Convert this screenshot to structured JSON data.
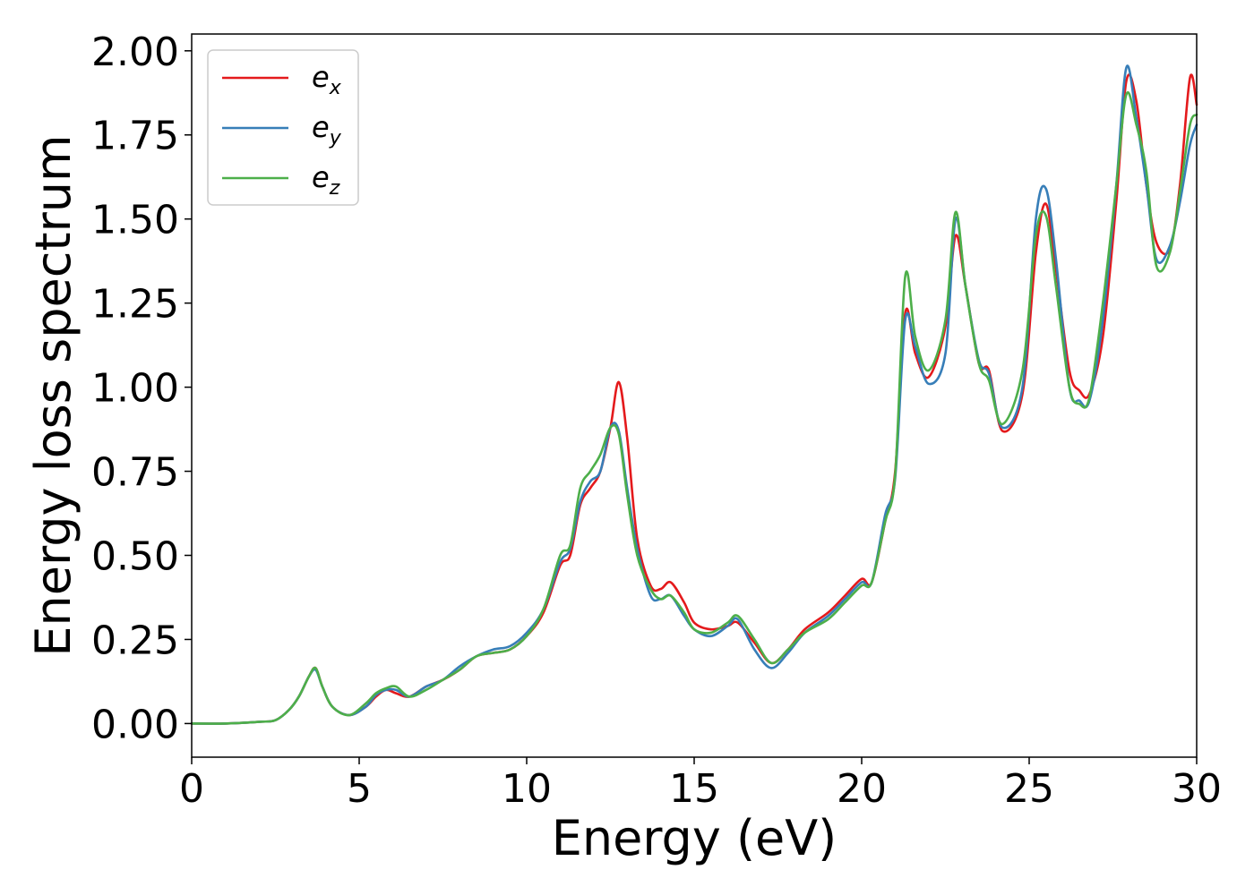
{
  "chart_data": {
    "type": "line",
    "xlabel": "Energy (eV)",
    "ylabel": "Energy loss spectrum",
    "xlim": [
      0,
      30
    ],
    "ylim": [
      -0.1,
      2.05
    ],
    "xticks": [
      "0",
      "5",
      "10",
      "15",
      "20",
      "25",
      "30"
    ],
    "yticks": [
      "0.00",
      "0.25",
      "0.50",
      "0.75",
      "1.00",
      "1.25",
      "1.50",
      "1.75",
      "2.00"
    ],
    "grid": false,
    "legend_position": "top-left",
    "series": [
      {
        "name": "e",
        "sub": "x",
        "color": "#e41a1c",
        "x": [
          0,
          1,
          2,
          2.5,
          2.9,
          3.2,
          3.5,
          3.7,
          3.9,
          4.2,
          4.7,
          5.2,
          5.5,
          5.8,
          6.1,
          6.5,
          7.0,
          7.5,
          8.0,
          8.5,
          9.0,
          9.5,
          10.0,
          10.5,
          11.0,
          11.3,
          11.6,
          11.9,
          12.2,
          12.5,
          12.75,
          13.0,
          13.3,
          13.7,
          14.0,
          14.3,
          14.7,
          15.0,
          15.5,
          16.0,
          16.3,
          16.8,
          17.3,
          17.8,
          18.3,
          19.0,
          19.5,
          20.0,
          20.3,
          20.7,
          21.0,
          21.3,
          21.6,
          22.0,
          22.5,
          22.8,
          23.1,
          23.5,
          23.8,
          24.2,
          24.8,
          25.2,
          25.5,
          25.8,
          26.2,
          26.5,
          26.8,
          27.2,
          27.6,
          27.9,
          28.2,
          28.5,
          28.8,
          29.2,
          29.5,
          29.8,
          30.0
        ],
        "y": [
          0.0,
          0.0,
          0.005,
          0.01,
          0.04,
          0.08,
          0.14,
          0.165,
          0.11,
          0.05,
          0.025,
          0.05,
          0.08,
          0.1,
          0.09,
          0.08,
          0.11,
          0.13,
          0.16,
          0.2,
          0.21,
          0.22,
          0.26,
          0.33,
          0.47,
          0.5,
          0.65,
          0.7,
          0.75,
          0.88,
          1.015,
          0.85,
          0.55,
          0.41,
          0.4,
          0.42,
          0.36,
          0.3,
          0.28,
          0.29,
          0.3,
          0.24,
          0.18,
          0.22,
          0.28,
          0.33,
          0.38,
          0.43,
          0.42,
          0.6,
          0.75,
          1.22,
          1.1,
          1.03,
          1.18,
          1.45,
          1.3,
          1.07,
          1.05,
          0.87,
          0.98,
          1.4,
          1.545,
          1.35,
          1.05,
          0.99,
          0.98,
          1.15,
          1.55,
          1.91,
          1.85,
          1.6,
          1.43,
          1.41,
          1.6,
          1.92,
          1.84
        ]
      },
      {
        "name": "e",
        "sub": "y",
        "color": "#377eb8",
        "x": [
          0,
          1,
          2,
          2.5,
          2.9,
          3.2,
          3.5,
          3.7,
          3.9,
          4.2,
          4.7,
          5.2,
          5.5,
          5.8,
          6.1,
          6.5,
          7.0,
          7.5,
          8.0,
          8.5,
          9.0,
          9.5,
          10.0,
          10.5,
          11.0,
          11.3,
          11.6,
          11.9,
          12.2,
          12.5,
          12.75,
          13.0,
          13.3,
          13.7,
          14.0,
          14.3,
          14.7,
          15.0,
          15.5,
          16.0,
          16.3,
          16.8,
          17.3,
          17.8,
          18.3,
          19.0,
          19.5,
          20.0,
          20.3,
          20.7,
          21.0,
          21.3,
          21.6,
          22.0,
          22.5,
          22.8,
          23.1,
          23.5,
          23.8,
          24.2,
          24.8,
          25.2,
          25.5,
          25.8,
          26.2,
          26.5,
          26.8,
          27.2,
          27.6,
          27.9,
          28.2,
          28.5,
          28.8,
          29.2,
          29.5,
          29.8,
          30.0
        ],
        "y": [
          0.0,
          0.0,
          0.005,
          0.01,
          0.04,
          0.08,
          0.14,
          0.16,
          0.11,
          0.05,
          0.025,
          0.05,
          0.085,
          0.1,
          0.1,
          0.08,
          0.11,
          0.13,
          0.17,
          0.2,
          0.22,
          0.23,
          0.27,
          0.34,
          0.48,
          0.52,
          0.66,
          0.72,
          0.75,
          0.88,
          0.87,
          0.7,
          0.52,
          0.38,
          0.37,
          0.38,
          0.32,
          0.28,
          0.26,
          0.29,
          0.31,
          0.22,
          0.165,
          0.21,
          0.27,
          0.32,
          0.37,
          0.42,
          0.42,
          0.62,
          0.73,
          1.2,
          1.12,
          1.01,
          1.1,
          1.5,
          1.3,
          1.08,
          1.04,
          0.88,
          1.0,
          1.5,
          1.59,
          1.38,
          1.0,
          0.96,
          0.96,
          1.2,
          1.6,
          1.95,
          1.8,
          1.6,
          1.38,
          1.42,
          1.55,
          1.72,
          1.78
        ]
      },
      {
        "name": "e",
        "sub": "z",
        "color": "#4daf4a",
        "x": [
          0,
          1,
          2,
          2.5,
          2.9,
          3.2,
          3.5,
          3.7,
          3.9,
          4.2,
          4.7,
          5.2,
          5.5,
          5.8,
          6.1,
          6.5,
          7.0,
          7.5,
          8.0,
          8.5,
          9.0,
          9.5,
          10.0,
          10.5,
          11.0,
          11.3,
          11.6,
          11.9,
          12.2,
          12.5,
          12.75,
          13.0,
          13.3,
          13.7,
          14.0,
          14.3,
          14.7,
          15.0,
          15.5,
          16.0,
          16.3,
          16.8,
          17.3,
          17.8,
          18.3,
          19.0,
          19.5,
          20.0,
          20.3,
          20.7,
          21.0,
          21.3,
          21.6,
          22.0,
          22.5,
          22.8,
          23.1,
          23.5,
          23.8,
          24.2,
          24.8,
          25.2,
          25.5,
          25.8,
          26.2,
          26.5,
          26.8,
          27.2,
          27.6,
          27.9,
          28.2,
          28.5,
          28.8,
          29.2,
          29.5,
          29.8,
          30.0
        ],
        "y": [
          0.0,
          0.0,
          0.005,
          0.01,
          0.04,
          0.08,
          0.14,
          0.165,
          0.11,
          0.05,
          0.025,
          0.06,
          0.09,
          0.105,
          0.11,
          0.08,
          0.1,
          0.13,
          0.16,
          0.2,
          0.21,
          0.22,
          0.26,
          0.34,
          0.5,
          0.53,
          0.7,
          0.75,
          0.8,
          0.88,
          0.86,
          0.68,
          0.5,
          0.4,
          0.37,
          0.38,
          0.33,
          0.28,
          0.27,
          0.3,
          0.32,
          0.25,
          0.18,
          0.22,
          0.27,
          0.31,
          0.36,
          0.41,
          0.42,
          0.6,
          0.74,
          1.33,
          1.15,
          1.05,
          1.2,
          1.52,
          1.3,
          1.07,
          1.02,
          0.89,
          1.05,
          1.45,
          1.51,
          1.3,
          1.0,
          0.95,
          0.97,
          1.25,
          1.6,
          1.87,
          1.78,
          1.64,
          1.36,
          1.4,
          1.58,
          1.78,
          1.81
        ]
      }
    ]
  }
}
